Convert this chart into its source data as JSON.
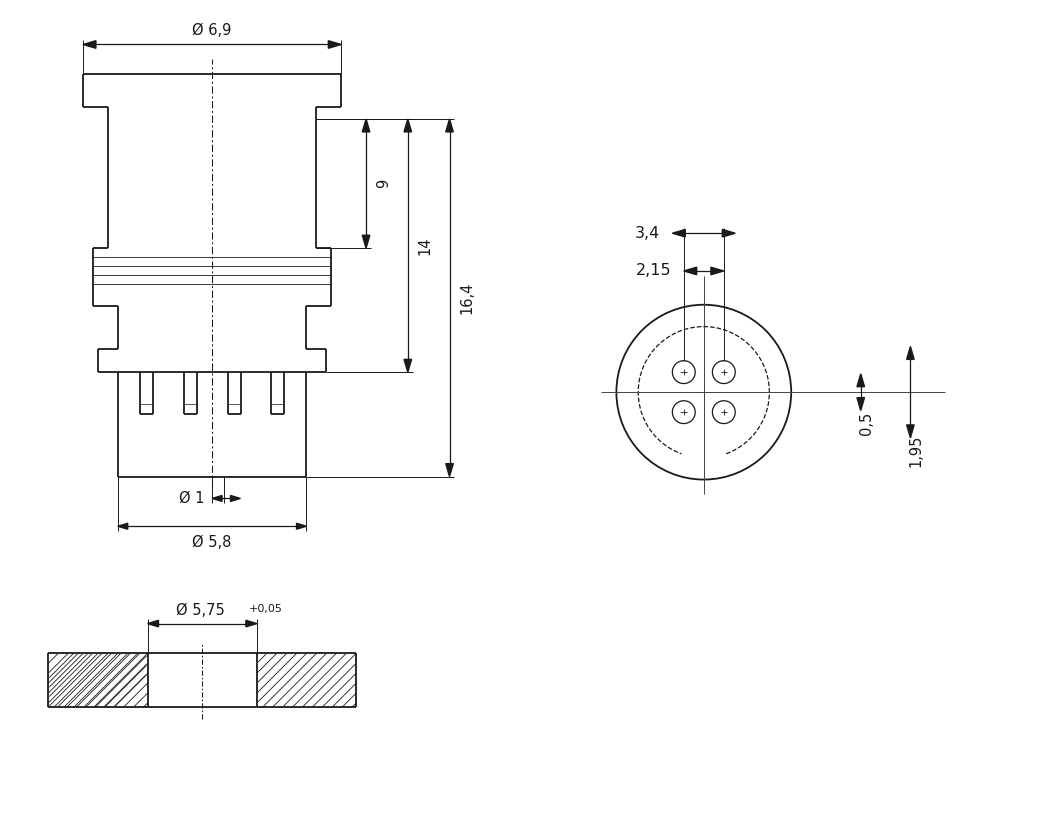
{
  "bg_color": "#ffffff",
  "lc": "#1a1a1a",
  "lw": 1.3,
  "annotations": {
    "phi_6_9": "Ø 6,9",
    "dim_9": "9",
    "dim_14": "14",
    "dim_16_4": "16,4",
    "phi_1": "Ø 1",
    "phi_5_8": "Ø 5,8",
    "dim_3_4": "3,4",
    "dim_2_15": "2,15",
    "dim_0_5": "0,5",
    "dim_1_95": "1,95",
    "phi_5_75": "Ø 5,75",
    "plus_0_05": "+0,05"
  }
}
